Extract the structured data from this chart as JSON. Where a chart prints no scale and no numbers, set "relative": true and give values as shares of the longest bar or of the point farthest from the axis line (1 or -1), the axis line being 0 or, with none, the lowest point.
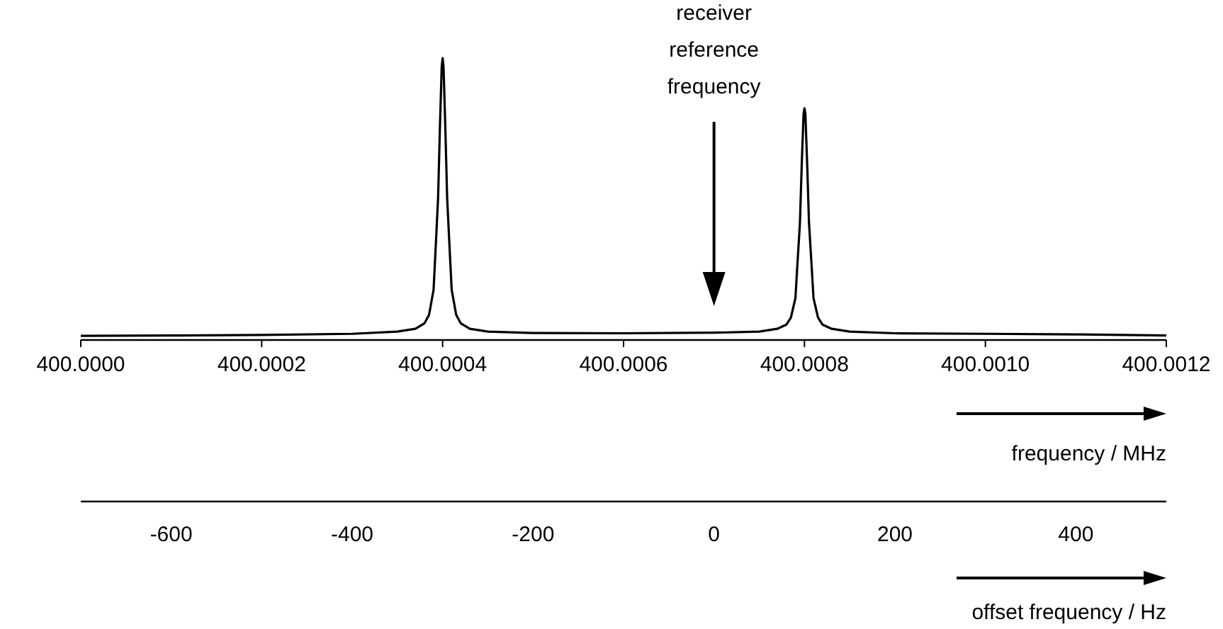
{
  "chart_data": {
    "type": "line",
    "relative": true,
    "color": "#000000",
    "x": [
      400.0,
      400.0001,
      400.0002,
      400.0003,
      400.00035,
      400.00037,
      400.00038,
      400.000385,
      400.00039,
      400.000392,
      400.000395,
      400.000397,
      400.000399,
      400.0004,
      400.000401,
      400.000403,
      400.000405,
      400.000408,
      400.00041,
      400.000415,
      400.00042,
      400.00043,
      400.00045,
      400.0005,
      400.0006,
      400.0007,
      400.00075,
      400.00077,
      400.00078,
      400.000785,
      400.00079,
      400.000792,
      400.000795,
      400.000797,
      400.000799,
      400.0008,
      400.000801,
      400.000803,
      400.000805,
      400.000808,
      400.00081,
      400.000815,
      400.00082,
      400.00083,
      400.00085,
      400.0009,
      400.001,
      400.0011,
      400.0012
    ],
    "values": [
      0.005,
      0.006,
      0.008,
      0.012,
      0.02,
      0.03,
      0.05,
      0.08,
      0.17,
      0.3,
      0.5,
      0.75,
      0.97,
      1,
      0.97,
      0.75,
      0.5,
      0.3,
      0.17,
      0.08,
      0.05,
      0.03,
      0.02,
      0.015,
      0.014,
      0.016,
      0.02,
      0.03,
      0.045,
      0.07,
      0.14,
      0.25,
      0.41,
      0.62,
      0.8,
      0.82,
      0.8,
      0.62,
      0.41,
      0.25,
      0.14,
      0.07,
      0.045,
      0.03,
      0.02,
      0.014,
      0.012,
      0.01,
      0.006
    ],
    "xlim": [
      400.0,
      400.0012
    ],
    "xticks": [
      {
        "value": 400.0,
        "label": "400.0000"
      },
      {
        "value": 400.0002,
        "label": "400.0002"
      },
      {
        "value": 400.0004,
        "label": "400.0004"
      },
      {
        "value": 400.0006,
        "label": "400.0006"
      },
      {
        "value": 400.0008,
        "label": "400.0008"
      },
      {
        "value": 400.001,
        "label": "400.0010"
      },
      {
        "value": 400.0012,
        "label": "400.0012"
      }
    ],
    "xlabel": "frequency / MHz",
    "x2lim": [
      -700,
      500
    ],
    "x2ticks": [
      -600,
      -400,
      -200,
      0,
      200,
      400
    ],
    "x2label": "offset frequency / Hz",
    "annotations": [
      {
        "text": "receiver reference frequency",
        "x": 400.0007
      }
    ]
  }
}
